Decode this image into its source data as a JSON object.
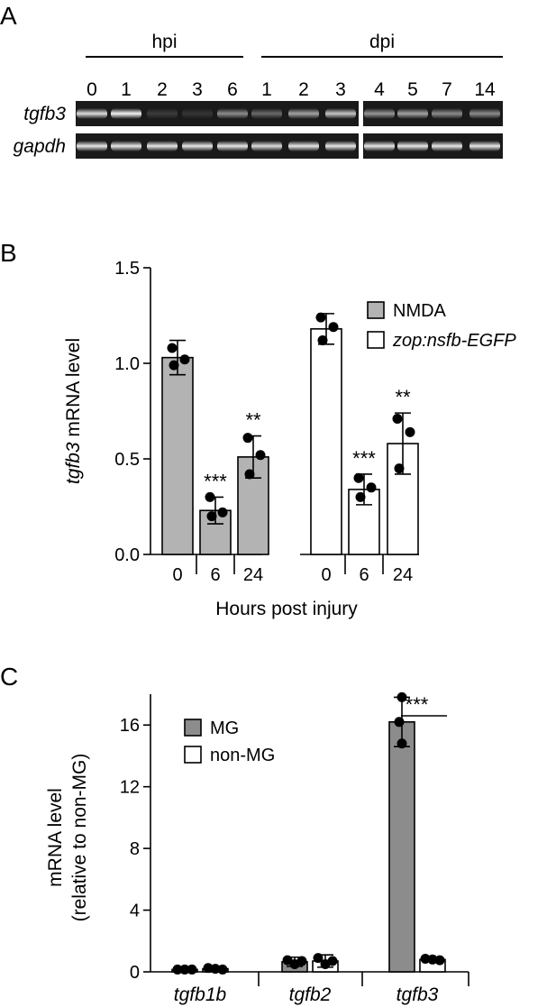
{
  "colors": {
    "gray_bar": "#b3b3b3",
    "white_bar": "#ffffff",
    "dark_bar": "#8c8c8c",
    "ink": "#000000"
  },
  "panels": {
    "a": {
      "label": "A"
    },
    "b": {
      "label": "B"
    },
    "c": {
      "label": "C"
    }
  },
  "chart_data": [
    {
      "type": "table",
      "panel": "A",
      "description_printed": "",
      "groups": [
        {
          "label": "hpi",
          "lanes": [
            "0",
            "1",
            "2",
            "3",
            "6"
          ]
        },
        {
          "label": "dpi",
          "lanes": [
            "1",
            "2",
            "3",
            "4",
            "5",
            "7",
            "14"
          ]
        }
      ],
      "rows": [
        {
          "label": "tgfb3",
          "intensity": [
            0.85,
            0.95,
            0.15,
            0.12,
            0.5,
            0.35,
            0.6,
            0.75,
            0.55,
            0.6,
            0.5,
            0.5
          ]
        },
        {
          "label": "gapdh",
          "intensity": [
            0.9,
            0.9,
            0.9,
            0.9,
            0.9,
            0.85,
            0.9,
            0.9,
            0.9,
            0.9,
            0.9,
            0.9
          ]
        }
      ]
    },
    {
      "type": "bar",
      "panel": "B",
      "ylabel_italic": "tgfb3",
      "ylabel_rest": " mRNA level",
      "xlabel": "Hours post injury",
      "ylim": [
        0,
        1.5
      ],
      "yticks": [
        "0.0",
        "0.5",
        "1.0",
        "1.5"
      ],
      "ytick_values": [
        0,
        0.5,
        1.0,
        1.5
      ],
      "legend": [
        {
          "name": "NMDA",
          "italic": false
        },
        {
          "name": "zop:nsfb-EGFP",
          "italic": true
        }
      ],
      "legend_position": "top-right",
      "series": [
        {
          "name": "NMDA",
          "categories": [
            "0",
            "6",
            "24"
          ],
          "values": [
            1.03,
            0.23,
            0.51
          ],
          "errors": [
            0.09,
            0.07,
            0.11
          ],
          "points": [
            [
              1.08,
              1.02,
              0.99
            ],
            [
              0.3,
              0.22,
              0.2
            ],
            [
              0.61,
              0.52,
              0.42
            ]
          ],
          "sig": [
            "",
            "***",
            "**"
          ]
        },
        {
          "name": "zop:nsfb-EGFP",
          "categories": [
            "0",
            "6",
            "24"
          ],
          "values": [
            1.18,
            0.34,
            0.58
          ],
          "errors": [
            0.08,
            0.08,
            0.16
          ],
          "points": [
            [
              1.24,
              1.19,
              1.12
            ],
            [
              0.4,
              0.35,
              0.3
            ],
            [
              0.71,
              0.64,
              0.45
            ]
          ],
          "sig": [
            "",
            "***",
            "**"
          ]
        }
      ]
    },
    {
      "type": "bar",
      "panel": "C",
      "ylabel_line1": "mRNA level",
      "ylabel_line2": "(relative to non-MG)",
      "ylim": [
        0,
        18
      ],
      "yticks": [
        "0",
        "4",
        "8",
        "12",
        "16"
      ],
      "ytick_values": [
        0,
        4,
        8,
        12,
        16
      ],
      "categories": [
        "tgfb1b",
        "tgfb2",
        "tgfb3"
      ],
      "legend": [
        {
          "name": "MG"
        },
        {
          "name": "non-MG"
        }
      ],
      "legend_position": "top-left",
      "series": [
        {
          "name": "MG",
          "values": [
            0.15,
            0.65,
            16.2
          ],
          "errors": [
            0.05,
            0.3,
            1.6
          ],
          "points": [
            [
              0.15,
              0.15,
              0.15
            ],
            [
              0.75,
              0.5,
              0.7
            ],
            [
              17.8,
              16.2,
              14.8
            ]
          ]
        },
        {
          "name": "non-MG",
          "values": [
            0.2,
            0.7,
            0.8
          ],
          "errors": [
            0.08,
            0.4,
            0.12
          ],
          "points": [
            [
              0.25,
              0.2,
              0.15
            ],
            [
              0.9,
              0.5,
              0.7
            ],
            [
              0.85,
              0.8,
              0.75
            ]
          ]
        }
      ],
      "significance": {
        "category": "tgfb3",
        "label": "***"
      }
    }
  ]
}
